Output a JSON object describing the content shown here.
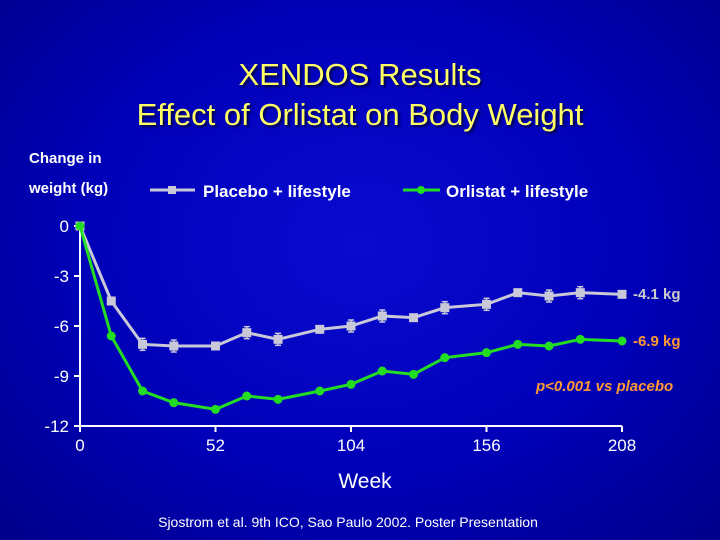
{
  "chart_data": {
    "type": "line",
    "title": "XENDOS Results",
    "subtitle": "Effect of Orlistat on Body Weight",
    "ylabel_line1": "Change in",
    "ylabel_line2": "weight (kg)",
    "xlabel": "Week",
    "xlim": [
      0,
      208
    ],
    "ylim": [
      -12,
      0
    ],
    "x_ticks": [
      "0",
      "52",
      "104",
      "156",
      "208"
    ],
    "y_ticks": [
      "0",
      "-3",
      "-6",
      "-9",
      "-12"
    ],
    "legend_position": "top",
    "series": [
      {
        "name": "Placebo + lifestyle",
        "color": "#c8c8d8",
        "marker": "square",
        "x": [
          0,
          12,
          24,
          36,
          52,
          64,
          76,
          92,
          104,
          116,
          128,
          140,
          156,
          168,
          180,
          192,
          208
        ],
        "y": [
          0,
          -4.5,
          -7.1,
          -7.2,
          -7.2,
          -6.4,
          -6.8,
          -6.2,
          -6.0,
          -5.4,
          -5.5,
          -4.9,
          -4.7,
          -4.0,
          -4.2,
          -4.0,
          -4.1
        ],
        "end_label": "-4.1 kg",
        "end_label_color": "#cccccc"
      },
      {
        "name": "Orlistat + lifestyle",
        "color": "#22dd22",
        "marker": "circle",
        "x": [
          0,
          12,
          24,
          36,
          52,
          64,
          76,
          92,
          104,
          116,
          128,
          140,
          156,
          168,
          180,
          192,
          208
        ],
        "y": [
          0,
          -6.6,
          -9.9,
          -10.6,
          -11.0,
          -10.2,
          -10.4,
          -9.9,
          -9.5,
          -8.7,
          -8.9,
          -7.9,
          -7.6,
          -7.1,
          -7.2,
          -6.8,
          -6.9
        ],
        "end_label": "-6.9 kg",
        "end_label_color": "#ff9933"
      }
    ],
    "annotation": "p<0.001 vs placebo",
    "annotation_color": "#ff9933",
    "source": "Sjostrom et al. 9th ICO, Sao Paulo 2002. Poster Presentation"
  }
}
